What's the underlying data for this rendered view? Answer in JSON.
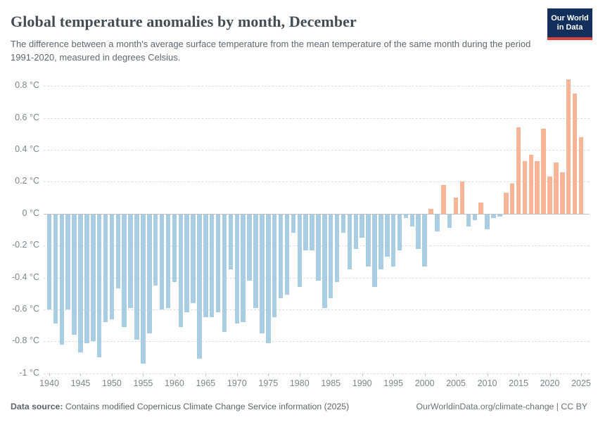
{
  "header": {
    "title": "Global temperature anomalies by month, December",
    "subtitle": "The difference between a month's average surface temperature from the mean temperature of the same month during the period 1991-2020, measured in degrees Celsius.",
    "logo": {
      "line1": "Our World",
      "line2": "in Data"
    }
  },
  "chart_data": {
    "type": "bar",
    "title": "Global temperature anomalies by month, December",
    "unit": "°C",
    "ylim": [
      -1.0,
      0.8
    ],
    "grid": "dashed horizontal every 0.2",
    "y_ticks": [
      {
        "value": 0.8,
        "label": "0.8 °C"
      },
      {
        "value": 0.6,
        "label": "0.6 °C"
      },
      {
        "value": 0.4,
        "label": "0.4 °C"
      },
      {
        "value": 0.2,
        "label": "0.2 °C"
      },
      {
        "value": 0.0,
        "label": "0 °C"
      },
      {
        "value": -0.2,
        "label": "-0.2 °C"
      },
      {
        "value": -0.4,
        "label": "-0.4 °C"
      },
      {
        "value": -0.6,
        "label": "-0.6 °C"
      },
      {
        "value": -0.8,
        "label": "-0.8 °C"
      },
      {
        "value": -1.0,
        "label": "-1 °C"
      }
    ],
    "x_tick_years": [
      1940,
      1945,
      1950,
      1955,
      1960,
      1965,
      1970,
      1975,
      1980,
      1985,
      1990,
      1995,
      2000,
      2005,
      2010,
      2015,
      2020,
      2025
    ],
    "years": [
      1940,
      1941,
      1942,
      1943,
      1944,
      1945,
      1946,
      1947,
      1948,
      1949,
      1950,
      1951,
      1952,
      1953,
      1954,
      1955,
      1956,
      1957,
      1958,
      1959,
      1960,
      1961,
      1962,
      1963,
      1964,
      1965,
      1966,
      1967,
      1968,
      1969,
      1970,
      1971,
      1972,
      1973,
      1974,
      1975,
      1976,
      1977,
      1978,
      1979,
      1980,
      1981,
      1982,
      1983,
      1984,
      1985,
      1986,
      1987,
      1988,
      1989,
      1990,
      1991,
      1992,
      1993,
      1994,
      1995,
      1996,
      1997,
      1998,
      1999,
      2000,
      2001,
      2002,
      2003,
      2004,
      2005,
      2006,
      2007,
      2008,
      2009,
      2010,
      2011,
      2012,
      2013,
      2014,
      2015,
      2016,
      2017,
      2018,
      2019,
      2020,
      2021,
      2022,
      2023,
      2024,
      2025
    ],
    "values": [
      -0.6,
      -0.69,
      -0.82,
      -0.6,
      -0.76,
      -0.87,
      -0.81,
      -0.8,
      -0.9,
      -0.68,
      -0.66,
      -0.47,
      -0.71,
      -0.59,
      -0.79,
      -0.94,
      -0.75,
      -0.45,
      -0.6,
      -0.59,
      -0.43,
      -0.71,
      -0.62,
      -0.56,
      -0.91,
      -0.65,
      -0.65,
      -0.62,
      -0.74,
      -0.35,
      -0.69,
      -0.68,
      -0.42,
      -0.59,
      -0.75,
      -0.81,
      -0.65,
      -0.53,
      -0.51,
      -0.12,
      -0.46,
      -0.23,
      -0.23,
      -0.42,
      -0.59,
      -0.53,
      -0.43,
      -0.12,
      -0.35,
      -0.22,
      -0.15,
      -0.33,
      -0.46,
      -0.35,
      -0.27,
      -0.33,
      -0.23,
      -0.03,
      -0.08,
      -0.22,
      -0.33,
      0.03,
      -0.11,
      0.18,
      -0.09,
      0.1,
      0.2,
      -0.08,
      -0.04,
      0.07,
      -0.1,
      -0.03,
      -0.02,
      0.13,
      0.19,
      0.54,
      0.33,
      0.37,
      0.33,
      0.53,
      0.23,
      0.32,
      0.26,
      0.84,
      0.75,
      0.48
    ],
    "positive_color": "#f7b496",
    "negative_color": "#a9cee4",
    "legend": "none"
  },
  "footer": {
    "source_label": "Data source:",
    "source_text": " Contains modified Copernicus Climate Change Service information (2025)",
    "right_text": "OurWorldinData.org/climate-change | CC BY"
  }
}
